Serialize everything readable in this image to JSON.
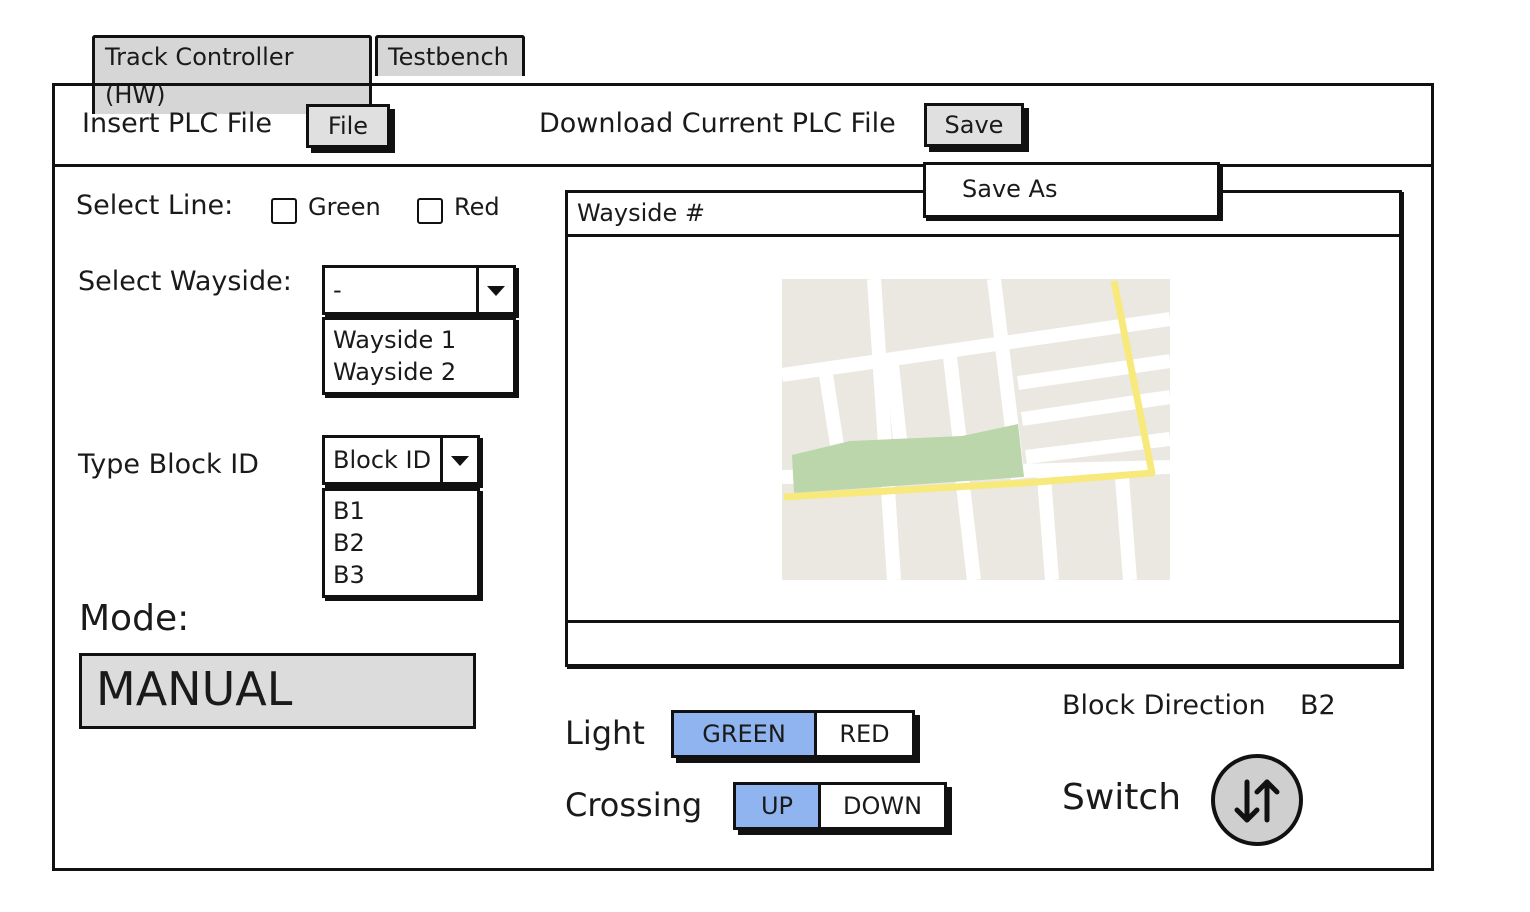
{
  "tabs": [
    {
      "label": "Track Controller (HW)"
    },
    {
      "label": "Testbench"
    }
  ],
  "toolbar": {
    "insert_label": "Insert PLC File",
    "file_button": "File",
    "download_label": "Download Current PLC File",
    "save_button": "Save",
    "save_menu": [
      "Save As"
    ]
  },
  "select_line": {
    "label": "Select Line:",
    "options": [
      {
        "label": "Green",
        "checked": false
      },
      {
        "label": "Red",
        "checked": false
      }
    ]
  },
  "select_wayside": {
    "label": "Select Wayside:",
    "value": "-",
    "options": [
      "Wayside 1",
      "Wayside 2"
    ]
  },
  "block_id": {
    "label": "Type Block ID",
    "value": "Block ID",
    "options": [
      "B1",
      "B2",
      "B3"
    ]
  },
  "mode": {
    "label": "Mode:",
    "value": "MANUAL"
  },
  "wayside_panel": {
    "title": "Wayside #"
  },
  "light": {
    "label": "Light",
    "options": [
      "GREEN",
      "RED"
    ],
    "selected": "GREEN"
  },
  "crossing": {
    "label": "Crossing",
    "options": [
      "UP",
      "DOWN"
    ],
    "selected": "UP"
  },
  "block_direction": {
    "label": "Block Direction",
    "value": "B2"
  },
  "switch": {
    "label": "Switch",
    "icon": "swap-vertical-icon"
  },
  "colors": {
    "toggle_on": "#8fb4ef",
    "button_bg": "#e0e0e0",
    "map_ground": "#ebe8e2",
    "map_park": "#bcd6ab",
    "map_route": "#f8e97c"
  }
}
